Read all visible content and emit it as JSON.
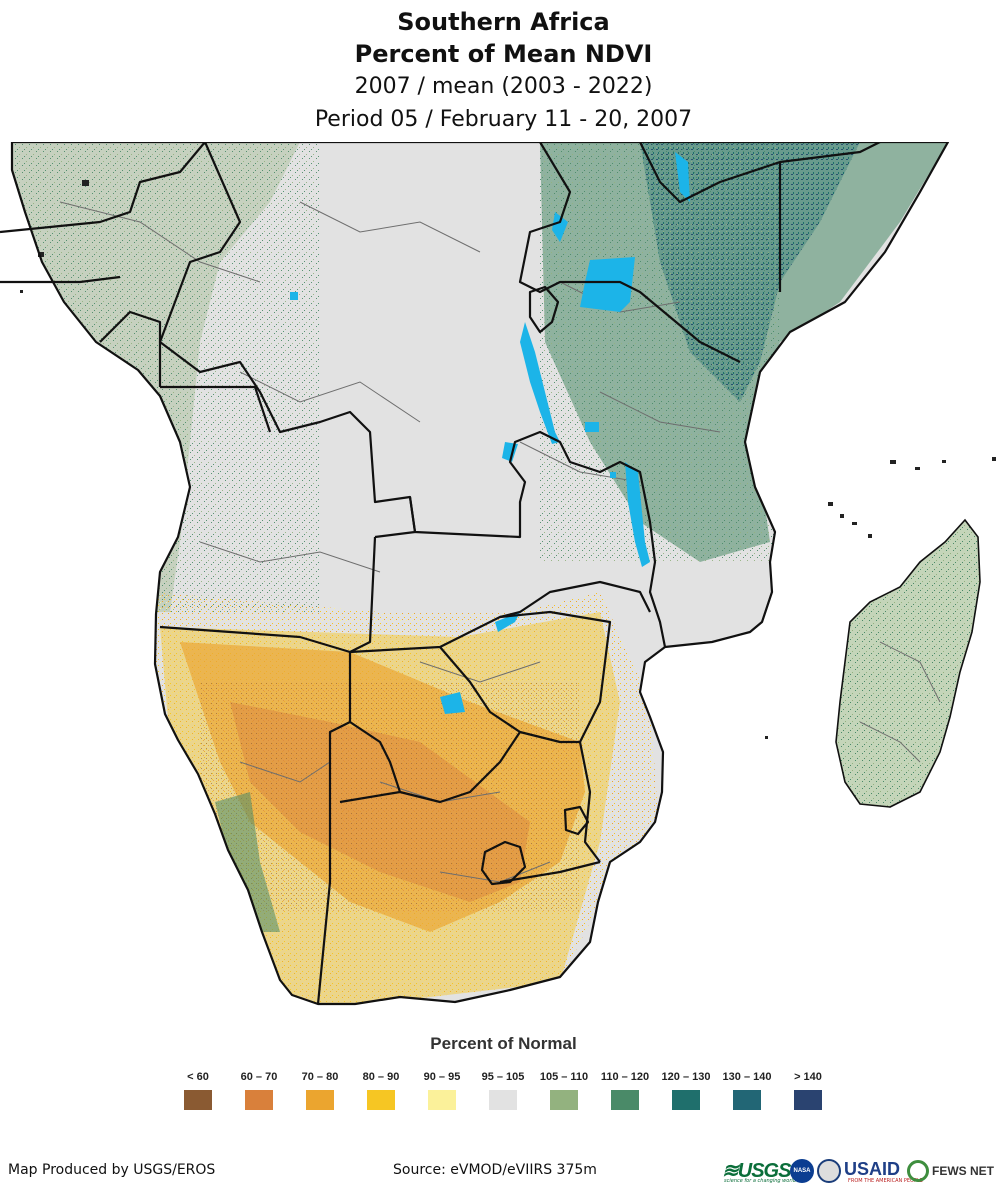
{
  "title": {
    "line1": "Southern Africa",
    "line2": "Percent of Mean NDVI",
    "line3": "2007 / mean (2003 - 2022)",
    "line4": "Period 05 / February 11 - 20, 2007"
  },
  "legend": {
    "title": "Percent of Normal",
    "classes": [
      {
        "label": "< 60",
        "color": "#8a5a32"
      },
      {
        "label": "60 – 70",
        "color": "#d9803b"
      },
      {
        "label": "70 – 80",
        "color": "#eba52f"
      },
      {
        "label": "80 – 90",
        "color": "#f6c623"
      },
      {
        "label": "90 – 95",
        "color": "#fbf19a"
      },
      {
        "label": "95 – 105",
        "color": "#e2e2e2"
      },
      {
        "label": "105 – 110",
        "color": "#93b27f"
      },
      {
        "label": "110 – 120",
        "color": "#4a8a68"
      },
      {
        "label": "120 – 130",
        "color": "#1f6f6c"
      },
      {
        "label": "130 – 140",
        "color": "#226675"
      },
      {
        "label": "> 140",
        "color": "#2a4370"
      }
    ]
  },
  "footer": {
    "produced_by": "Map Produced by USGS/EROS",
    "source": "Source: eVMOD/eVIIRS 375m"
  },
  "logos": {
    "usgs": "≋USGS",
    "usgs_tagline": "science for a changing world",
    "nasa": "NASA",
    "usaid": "USAID",
    "usaid_tagline": "FROM THE AMERICAN PEOPLE",
    "fews": "FEWS NET"
  },
  "colors": {
    "water": "#1cb4e8",
    "border": "#111111",
    "admin_line": "#6e6e6e"
  }
}
